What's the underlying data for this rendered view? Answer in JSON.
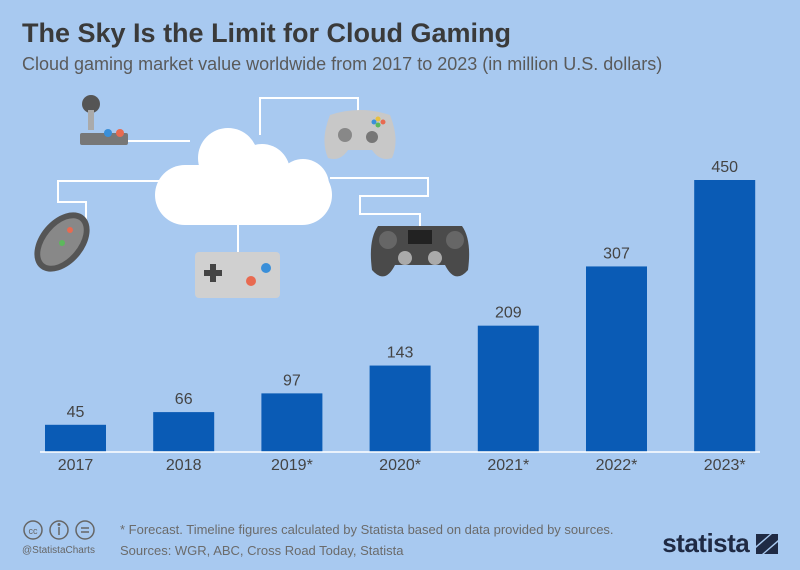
{
  "chart_data": {
    "type": "bar",
    "title": "The Sky Is the Limit for Cloud Gaming",
    "subtitle": "Cloud gaming market value worldwide from 2017 to 2023 (in million U.S. dollars)",
    "categories": [
      "2017",
      "2018",
      "2019*",
      "2020*",
      "2021*",
      "2022*",
      "2023*"
    ],
    "values": [
      45,
      66,
      97,
      143,
      209,
      307,
      450
    ],
    "ylim": [
      0,
      450
    ],
    "grid": false,
    "bar_color": "#0a5bb5",
    "background_color": "#a8c9f0"
  },
  "footer": {
    "note": "* Forecast. Timeline figures calculated by Statista based on data provided by sources.",
    "sources": "Sources: WGR, ABC, Cross Road Today, Statista",
    "handle": "@StatistaCharts",
    "brand": "statista",
    "icons": [
      "cc-icon",
      "attribution-icon",
      "no-derivatives-icon"
    ]
  }
}
